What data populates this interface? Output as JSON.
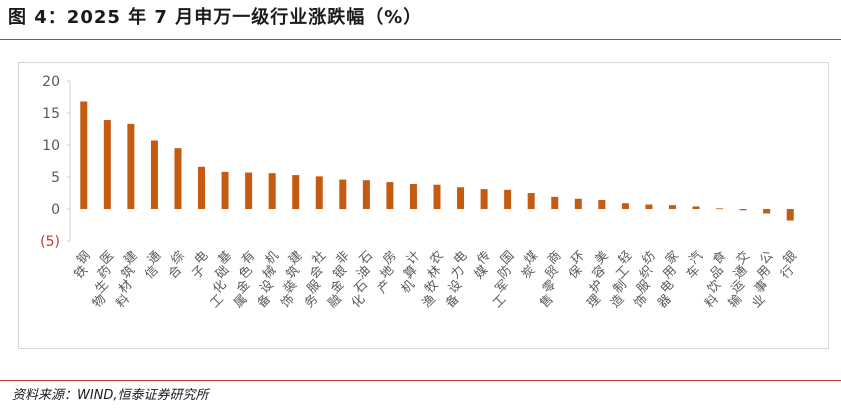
{
  "title": "图 4：2025 年 7 月申万一级行业涨跌幅（%）",
  "source": "资料来源：WIND,恒泰证券研究所",
  "colors": {
    "bar": "#c55a11",
    "rule": "#c0392b",
    "negative_tick": "#c0392b",
    "axis_text": "#595959"
  },
  "chart_data": {
    "type": "bar",
    "title": "",
    "xlabel": "",
    "ylabel": "",
    "ylim": [
      -5,
      20
    ],
    "yticks": [
      -5,
      0,
      5,
      10,
      15,
      20
    ],
    "ytick_labels": [
      "(5)",
      "0",
      "5",
      "10",
      "15",
      "20"
    ],
    "grid": false,
    "legend": "none",
    "categories": [
      "钢铁",
      "医药生物",
      "建筑材料",
      "通信",
      "综合",
      "电子",
      "基础化工",
      "有色金属",
      "机械设备",
      "建筑装饰",
      "社会服务",
      "非银金融",
      "石油石化",
      "房地产",
      "计算机",
      "农林牧渔",
      "电力设备",
      "传媒",
      "国防军工",
      "煤炭",
      "商贸零售",
      "环保",
      "美容护理",
      "轻工制造",
      "纺织服饰",
      "家用电器",
      "汽车",
      "食品饮料",
      "交通运输",
      "公用事业",
      "银行"
    ],
    "values": [
      16.8,
      13.9,
      13.3,
      10.7,
      9.5,
      6.6,
      5.8,
      5.7,
      5.6,
      5.3,
      5.1,
      4.6,
      4.5,
      4.2,
      3.9,
      3.8,
      3.4,
      3.1,
      3.0,
      2.5,
      1.9,
      1.6,
      1.4,
      0.9,
      0.7,
      0.6,
      0.4,
      0.1,
      -0.2,
      -0.7,
      -1.8
    ]
  }
}
